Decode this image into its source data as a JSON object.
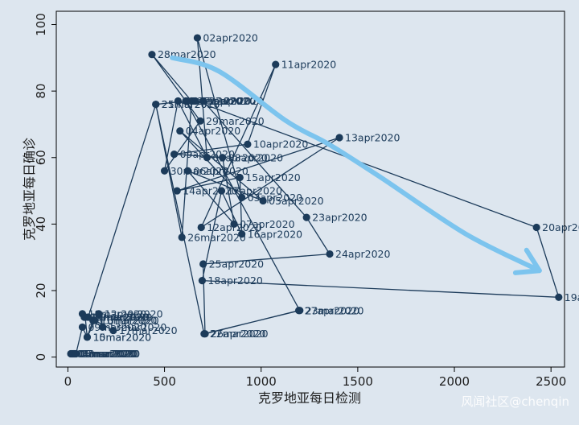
{
  "chart_data": {
    "type": "scatter",
    "connected": true,
    "xlabel": "克罗地亚每日检测",
    "ylabel": "克罗地亚每日确诊",
    "xlim": [
      -60,
      2570
    ],
    "ylim": [
      -3,
      104
    ],
    "xticks": [
      0,
      500,
      1000,
      1500,
      2000,
      2500
    ],
    "yticks": [
      0,
      20,
      40,
      60,
      80,
      100
    ],
    "grid": false,
    "colors": {
      "background": "#dde6ef",
      "marker": "#1c3b5a",
      "line": "#1c3b5a",
      "label": "#1c3b5a",
      "annotation_arrow": "#7cc4ee"
    },
    "points": [
      {
        "label": "04mar2020",
        "x": 15,
        "y": 1
      },
      {
        "label": "05mar2020",
        "x": 22,
        "y": 1
      },
      {
        "label": "06mar2020",
        "x": 28,
        "y": 1
      },
      {
        "label": "07mar2020",
        "x": 35,
        "y": 1
      },
      {
        "label": "08mar2020",
        "x": 42,
        "y": 1
      },
      {
        "label": "09mar2020",
        "x": 75,
        "y": 9
      },
      {
        "label": "10mar2020",
        "x": 100,
        "y": 6
      },
      {
        "label": "11mar2020",
        "x": 130,
        "y": 11
      },
      {
        "label": "12mar2020",
        "x": 160,
        "y": 13
      },
      {
        "label": "13mar2020",
        "x": 180,
        "y": 9
      },
      {
        "label": "14mar2020",
        "x": 90,
        "y": 12
      },
      {
        "label": "15mar2020",
        "x": 100,
        "y": 6
      },
      {
        "label": "16mar2020",
        "x": 140,
        "y": 11
      },
      {
        "label": "17mar2020",
        "x": 235,
        "y": 8
      },
      {
        "label": "18mar2020",
        "x": 75,
        "y": 13
      },
      {
        "label": "19mar2020",
        "x": 85,
        "y": 12
      },
      {
        "label": "20mar2020",
        "x": 105,
        "y": 12
      },
      {
        "label": "21mar2020",
        "x": 455,
        "y": 76
      },
      {
        "label": "22mar2020",
        "x": 705,
        "y": 7
      },
      {
        "label": "23mar2020",
        "x": 1200,
        "y": 14
      },
      {
        "label": "24mar2020",
        "x": 610,
        "y": 77
      },
      {
        "label": "25mar2020",
        "x": 455,
        "y": 76
      },
      {
        "label": "26mar2020",
        "x": 590,
        "y": 36
      },
      {
        "label": "27mar2020",
        "x": 640,
        "y": 77
      },
      {
        "label": "28mar2020",
        "x": 435,
        "y": 91
      },
      {
        "label": "29mar2020",
        "x": 685,
        "y": 71
      },
      {
        "label": "30mar2020",
        "x": 500,
        "y": 56
      },
      {
        "label": "31mar2020",
        "x": 570,
        "y": 77
      },
      {
        "label": "01apr2020",
        "x": 720,
        "y": 60
      },
      {
        "label": "02apr2020",
        "x": 670,
        "y": 96
      },
      {
        "label": "03apr2020",
        "x": 900,
        "y": 48
      },
      {
        "label": "04apr2020",
        "x": 580,
        "y": 68
      },
      {
        "label": "05apr2020",
        "x": 1010,
        "y": 47
      },
      {
        "label": "06apr2020",
        "x": 620,
        "y": 56
      },
      {
        "label": "07apr2020",
        "x": 860,
        "y": 40
      },
      {
        "label": "08apr2020",
        "x": 800,
        "y": 60
      },
      {
        "label": "09apr2020",
        "x": 550,
        "y": 61
      },
      {
        "label": "10apr2020",
        "x": 930,
        "y": 64
      },
      {
        "label": "11apr2020",
        "x": 1075,
        "y": 88
      },
      {
        "label": "12apr2020",
        "x": 690,
        "y": 39
      },
      {
        "label": "13apr2020",
        "x": 1405,
        "y": 66
      },
      {
        "label": "14apr2020",
        "x": 565,
        "y": 50
      },
      {
        "label": "15apr2020",
        "x": 890,
        "y": 54
      },
      {
        "label": "16apr2020",
        "x": 900,
        "y": 37
      },
      {
        "label": "17apr2020",
        "x": 795,
        "y": 50
      },
      {
        "label": "18apr2020",
        "x": 695,
        "y": 23
      },
      {
        "label": "19apr2020",
        "x": 2540,
        "y": 18
      },
      {
        "label": "20apr2020",
        "x": 2425,
        "y": 39
      },
      {
        "label": "21apr2020",
        "x": 660,
        "y": 77
      },
      {
        "label": "22apr2020",
        "x": 700,
        "y": 77
      },
      {
        "label": "23apr2020",
        "x": 1235,
        "y": 42
      },
      {
        "label": "24apr2020",
        "x": 1355,
        "y": 31
      },
      {
        "label": "25apr2020",
        "x": 700,
        "y": 28
      },
      {
        "label": "26apr2020",
        "x": 710,
        "y": 7
      },
      {
        "label": "27apr2020",
        "x": 1195,
        "y": 14
      }
    ],
    "annotation_arrow": {
      "path": [
        [
          540,
          90
        ],
        [
          780,
          86
        ],
        [
          1130,
          71
        ],
        [
          1350,
          64
        ],
        [
          1620,
          54
        ],
        [
          2060,
          37
        ],
        [
          2440,
          26
        ]
      ]
    }
  },
  "watermark": "风闻社区@chenqin"
}
